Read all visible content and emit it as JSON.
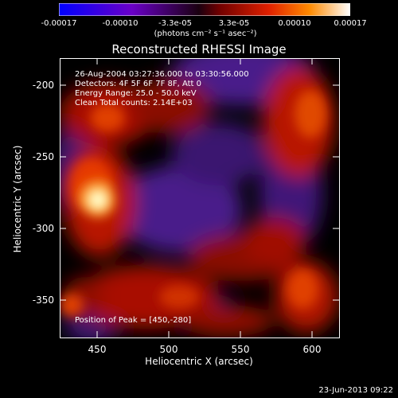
{
  "colorbar": {
    "tick_labels": [
      "-0.00017",
      "-0.00010",
      "-3.3e-05",
      "3.3e-05",
      "0.00010",
      "0.00017"
    ],
    "units": "(photons cm⁻² s⁻¹ asec⁻²)",
    "colors": [
      "#0000ff",
      "#6a00c8",
      "#1a0010",
      "#c01000",
      "#ff6a00",
      "#ffffff"
    ]
  },
  "plot": {
    "title": "Reconstructed RHESSI Image",
    "info": {
      "time_range": "26-Aug-2004 03:27:36.000 to 03:30:56.000",
      "detectors": "Detectors: 4F 5F 6F 7F 8F, Att 0",
      "energy": "Energy Range: 25.0 - 50.0 keV",
      "clean": "Clean    Total counts: 2.14E+03"
    },
    "peak": "Position of Peak = [450,-280]",
    "x_axis": {
      "label": "Heliocentric X (arcsec)",
      "ticks": [
        "450",
        "500",
        "550",
        "600"
      ]
    },
    "y_axis": {
      "label": "Heliocentric Y (arcsec)",
      "ticks": [
        "-200",
        "-250",
        "-300",
        "-350"
      ]
    }
  },
  "footer": {
    "timestamp": "23-Jun-2013 09:22"
  }
}
